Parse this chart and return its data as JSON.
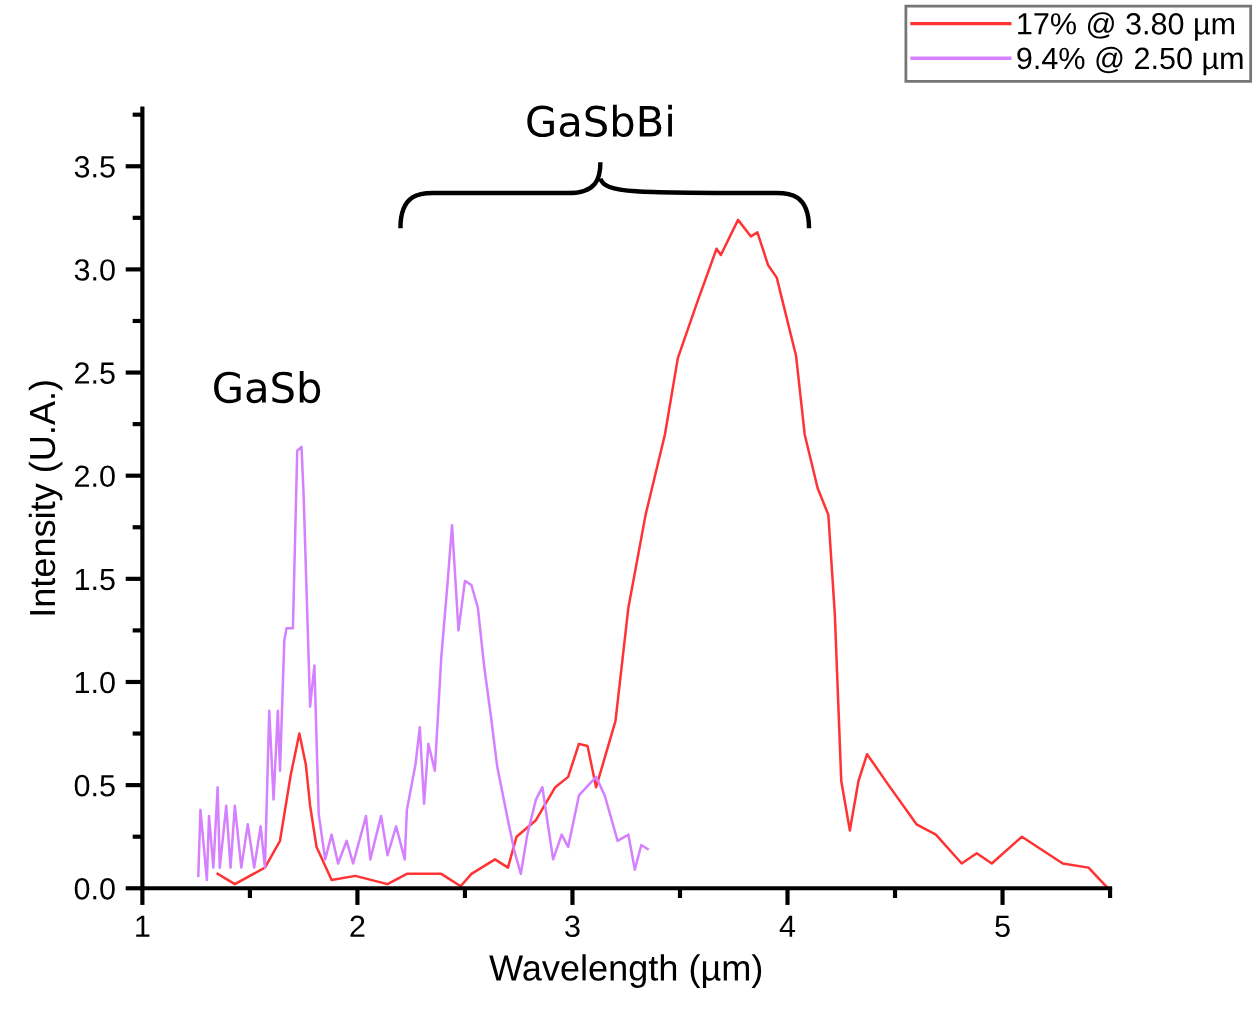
{
  "chart_data": {
    "type": "line",
    "xlabel": "Wavelength (µm)",
    "ylabel": "Intensity (U.A.)",
    "annotations": [
      "GaSb",
      "GaSbBi"
    ],
    "xlim": [
      1,
      5.5
    ],
    "xticks": [
      1,
      {
        "value": 1.5,
        "label": null
      },
      2,
      {
        "value": 2.5,
        "label": null
      },
      3,
      {
        "value": 3.5,
        "label": null
      },
      4,
      {
        "value": 4.5,
        "label": null
      },
      5,
      {
        "value": 5.5,
        "label": null
      }
    ],
    "ylim": [
      0,
      3.78
    ],
    "yticks": [
      {
        "value": 0,
        "label": "0.0"
      },
      {
        "value": 0.25,
        "label": null
      },
      {
        "value": 0.5,
        "label": "0.5"
      },
      {
        "value": 0.75,
        "label": null
      },
      {
        "value": 1.0,
        "label": "1.0"
      },
      {
        "value": 1.25,
        "label": null
      },
      {
        "value": 1.5,
        "label": "1.5"
      },
      {
        "value": 1.75,
        "label": null
      },
      {
        "value": 2.0,
        "label": "2.0"
      },
      {
        "value": 2.25,
        "label": null
      },
      {
        "value": 2.5,
        "label": "2.5"
      },
      {
        "value": 2.75,
        "label": null
      },
      {
        "value": 3.0,
        "label": "3.0"
      },
      {
        "value": 3.25,
        "label": null
      },
      {
        "value": 3.5,
        "label": "3.5"
      },
      {
        "value": 3.75,
        "label": null
      }
    ],
    "grid": false,
    "legend": "top right",
    "marker": "none",
    "line_style": "solid",
    "series": [
      {
        "name": "17% @ 3.80 µm",
        "color": "#ff3333",
        "x": [
          1.35,
          1.43,
          1.57,
          1.64,
          1.69,
          1.73,
          1.76,
          1.78,
          1.81,
          1.88,
          1.99,
          2.14,
          2.23,
          2.39,
          2.48,
          2.53,
          2.64,
          2.7,
          2.74,
          2.83,
          2.92,
          2.98,
          3.03,
          3.07,
          3.11,
          3.2,
          3.26,
          3.34,
          3.4,
          3.43,
          3.49,
          3.58,
          3.67,
          3.69,
          3.77,
          3.83,
          3.86,
          3.91,
          3.95,
          4.04,
          4.08,
          4.14,
          4.19,
          4.22,
          4.25,
          4.29,
          4.33,
          4.37,
          4.47,
          4.6,
          4.69,
          4.81,
          4.88,
          4.95,
          5.09,
          5.28,
          5.4,
          5.49
        ],
        "values": [
          0.07,
          0.02,
          0.1,
          0.23,
          0.55,
          0.75,
          0.6,
          0.4,
          0.2,
          0.04,
          0.06,
          0.02,
          0.07,
          0.07,
          0.01,
          0.07,
          0.14,
          0.1,
          0.25,
          0.33,
          0.49,
          0.54,
          0.7,
          0.69,
          0.49,
          0.81,
          1.36,
          1.81,
          2.07,
          2.2,
          2.57,
          2.84,
          3.1,
          3.07,
          3.24,
          3.16,
          3.18,
          3.02,
          2.96,
          2.58,
          2.2,
          1.94,
          1.81,
          1.33,
          0.52,
          0.28,
          0.52,
          0.65,
          0.5,
          0.31,
          0.26,
          0.12,
          0.17,
          0.12,
          0.25,
          0.12,
          0.1,
          0.0
        ]
      },
      {
        "name": "9.4% @ 2.50 µm",
        "color": "#d580ff",
        "x": [
          1.26,
          1.27,
          1.3,
          1.31,
          1.33,
          1.35,
          1.36,
          1.39,
          1.41,
          1.43,
          1.46,
          1.49,
          1.52,
          1.55,
          1.57,
          1.59,
          1.61,
          1.63,
          1.64,
          1.66,
          1.67,
          1.7,
          1.72,
          1.74,
          1.75,
          1.78,
          1.8,
          1.82,
          1.85,
          1.88,
          1.91,
          1.95,
          1.98,
          2.04,
          2.06,
          2.11,
          2.14,
          2.18,
          2.22,
          2.23,
          2.27,
          2.29,
          2.31,
          2.33,
          2.36,
          2.39,
          2.42,
          2.44,
          2.47,
          2.5,
          2.53,
          2.56,
          2.59,
          2.62,
          2.65,
          2.7,
          2.73,
          2.76,
          2.79,
          2.83,
          2.86,
          2.91,
          2.95,
          2.98,
          3.03,
          3.11,
          3.15,
          3.21,
          3.26,
          3.29,
          3.32,
          3.35
        ],
        "values": [
          0.06,
          0.38,
          0.04,
          0.35,
          0.1,
          0.49,
          0.1,
          0.4,
          0.1,
          0.4,
          0.1,
          0.31,
          0.1,
          0.3,
          0.1,
          0.86,
          0.43,
          0.86,
          0.57,
          1.2,
          1.26,
          1.26,
          2.12,
          2.14,
          1.9,
          0.88,
          1.08,
          0.36,
          0.14,
          0.26,
          0.12,
          0.23,
          0.12,
          0.35,
          0.14,
          0.35,
          0.16,
          0.3,
          0.14,
          0.38,
          0.6,
          0.78,
          0.41,
          0.7,
          0.57,
          1.12,
          1.49,
          1.76,
          1.25,
          1.49,
          1.47,
          1.36,
          1.07,
          0.84,
          0.59,
          0.33,
          0.18,
          0.07,
          0.26,
          0.43,
          0.49,
          0.14,
          0.26,
          0.2,
          0.45,
          0.54,
          0.45,
          0.23,
          0.26,
          0.09,
          0.21,
          0.19
        ]
      }
    ]
  }
}
